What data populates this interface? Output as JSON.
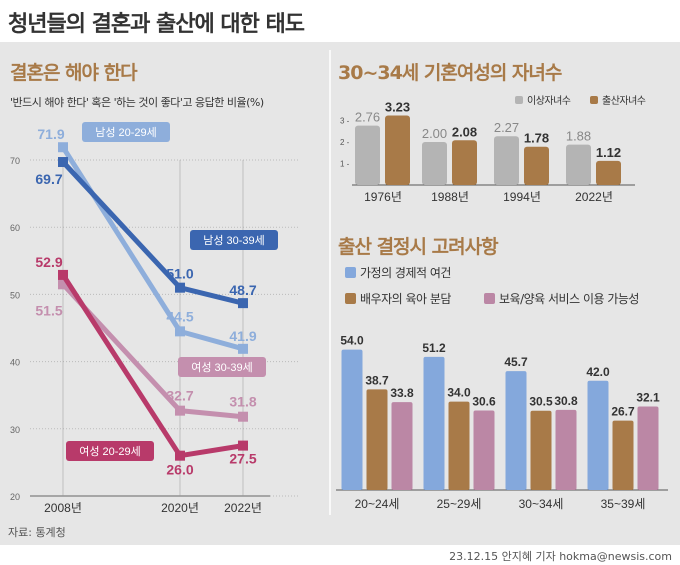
{
  "title": "청년들의 결혼과 출산에 대한 태도",
  "source": "자료: 통계청",
  "credit": "23.12.15 안지혜 기자 hokma@newsis.com",
  "chart_data": [
    {
      "type": "line",
      "title": "결혼은 해야 한다",
      "subtitle": "'반드시 해야 한다' 혹은 '하는 것이 좋다'고 응답한 비율(%)",
      "categories": [
        "2008년",
        "2020년",
        "2022년"
      ],
      "x": [
        2008,
        2020,
        2022
      ],
      "ylim": [
        20,
        75
      ],
      "yticks": [
        20,
        30,
        40,
        50,
        60,
        70
      ],
      "grid": true,
      "series": [
        {
          "name": "남성 20-29세",
          "values": [
            71.9,
            44.5,
            41.9
          ],
          "color": "#8eaedb"
        },
        {
          "name": "남성 30-39세",
          "values": [
            69.7,
            51.0,
            48.7
          ],
          "color": "#3b66b0"
        },
        {
          "name": "여성 30-39세",
          "values": [
            51.5,
            32.7,
            31.8
          ],
          "color": "#c48fae"
        },
        {
          "name": "여성 20-29세",
          "values": [
            52.9,
            26.0,
            27.5
          ],
          "color": "#b83a6a"
        }
      ]
    },
    {
      "type": "bar",
      "title": "30~34세 기혼여성의 자녀수",
      "categories": [
        "1976년",
        "1988년",
        "1994년",
        "2022년"
      ],
      "yticks": [
        1,
        2,
        3
      ],
      "legend": "top-right",
      "series": [
        {
          "name": "이상자녀수",
          "values": [
            2.76,
            2.0,
            2.27,
            1.88
          ],
          "color": "#b4b4b4"
        },
        {
          "name": "출산자녀수",
          "values": [
            3.23,
            2.08,
            1.78,
            1.12
          ],
          "color": "#a87a48"
        }
      ]
    },
    {
      "type": "bar",
      "title": "출산 결정시 고려사항",
      "categories": [
        "20~24세",
        "25~29세",
        "30~34세",
        "35~39세"
      ],
      "legend": "top",
      "series": [
        {
          "name": "가정의 경제적 여건",
          "values": [
            54.0,
            51.2,
            45.7,
            42.0
          ],
          "color": "#84a8dc"
        },
        {
          "name": "배우자의 육아 분담",
          "values": [
            38.7,
            34.0,
            30.5,
            26.7
          ],
          "color": "#a87a48"
        },
        {
          "name": "보육/양육 서비스 이용 가능성",
          "values": [
            33.8,
            30.6,
            30.8,
            32.1
          ],
          "color": "#bb87a5"
        }
      ]
    }
  ]
}
